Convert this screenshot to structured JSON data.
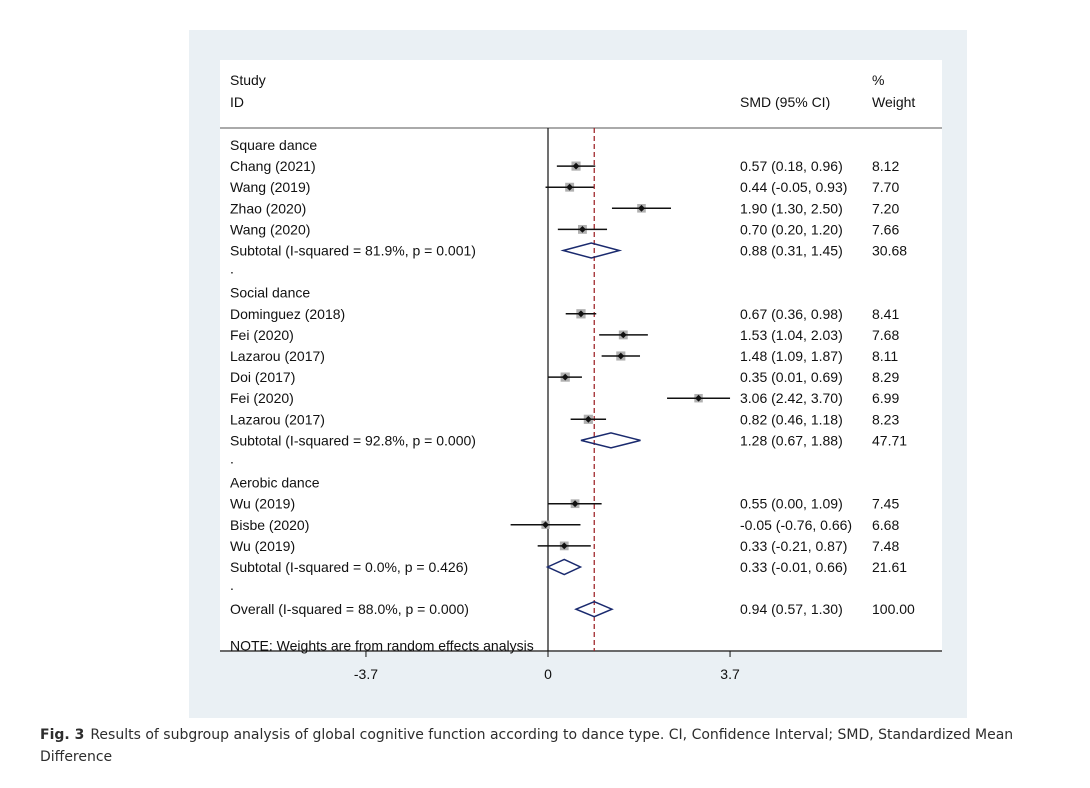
{
  "chart_data": {
    "type": "forest",
    "header": {
      "study_line1": "Study",
      "study_line2": "ID",
      "estimate_label": "SMD (95% CI)",
      "weight_line1": "%",
      "weight_line2": "Weight"
    },
    "x_ticks": [
      {
        "value": -3.7,
        "label": "-3.7"
      },
      {
        "value": 0,
        "label": "0"
      },
      {
        "value": 3.7,
        "label": "3.7"
      }
    ],
    "null_line": 0,
    "overall_estimate_line": 0.94,
    "groups": [
      {
        "name": "Square dance",
        "studies": [
          {
            "label": "Chang (2021)",
            "est": 0.57,
            "lo": 0.18,
            "hi": 0.96,
            "ci_text": "0.57 (0.18, 0.96)",
            "weight": "8.12"
          },
          {
            "label": "Wang  (2019)",
            "est": 0.44,
            "lo": -0.05,
            "hi": 0.93,
            "ci_text": "0.44 (-0.05, 0.93)",
            "weight": "7.70"
          },
          {
            "label": "Zhao (2020)",
            "est": 1.9,
            "lo": 1.3,
            "hi": 2.5,
            "ci_text": "1.90 (1.30, 2.50)",
            "weight": "7.20"
          },
          {
            "label": "Wang (2020)",
            "est": 0.7,
            "lo": 0.2,
            "hi": 1.2,
            "ci_text": "0.70 (0.20, 1.20)",
            "weight": "7.66"
          }
        ],
        "subtotal": {
          "label": "Subtotal  (I-squared = 81.9%, p = 0.001)",
          "est": 0.88,
          "lo": 0.31,
          "hi": 1.45,
          "ci_text": "0.88 (0.31, 1.45)",
          "weight": "30.68"
        }
      },
      {
        "name": "Social dance",
        "studies": [
          {
            "label": "Dominguez  (2018)",
            "est": 0.67,
            "lo": 0.36,
            "hi": 0.98,
            "ci_text": "0.67 (0.36, 0.98)",
            "weight": "8.41"
          },
          {
            "label": "Fei (2020)",
            "est": 1.53,
            "lo": 1.04,
            "hi": 2.03,
            "ci_text": "1.53 (1.04, 2.03)",
            "weight": "7.68"
          },
          {
            "label": "Lazarou  (2017)",
            "est": 1.48,
            "lo": 1.09,
            "hi": 1.87,
            "ci_text": "1.48 (1.09, 1.87)",
            "weight": "8.11"
          },
          {
            "label": "Doi (2017)",
            "est": 0.35,
            "lo": 0.01,
            "hi": 0.69,
            "ci_text": "0.35 (0.01, 0.69)",
            "weight": "8.29"
          },
          {
            "label": "Fei (2020)",
            "est": 3.06,
            "lo": 2.42,
            "hi": 3.7,
            "ci_text": "3.06 (2.42, 3.70)",
            "weight": "6.99"
          },
          {
            "label": "Lazarou  (2017)",
            "est": 0.82,
            "lo": 0.46,
            "hi": 1.18,
            "ci_text": "0.82 (0.46, 1.18)",
            "weight": "8.23"
          }
        ],
        "subtotal": {
          "label": "Subtotal  (I-squared = 92.8%, p = 0.000)",
          "est": 1.28,
          "lo": 0.67,
          "hi": 1.88,
          "ci_text": "1.28 (0.67, 1.88)",
          "weight": "47.71"
        }
      },
      {
        "name": "Aerobic dance",
        "studies": [
          {
            "label": "Wu (2019)",
            "est": 0.55,
            "lo": 0.0,
            "hi": 1.09,
            "ci_text": "0.55 (0.00, 1.09)",
            "weight": "7.45"
          },
          {
            "label": "Bisbe (2020)",
            "est": -0.05,
            "lo": -0.76,
            "hi": 0.66,
            "ci_text": "-0.05 (-0.76, 0.66)",
            "weight": "6.68"
          },
          {
            "label": "Wu (2019)",
            "est": 0.33,
            "lo": -0.21,
            "hi": 0.87,
            "ci_text": "0.33 (-0.21, 0.87)",
            "weight": "7.48"
          }
        ],
        "subtotal": {
          "label": "Subtotal  (I-squared = 0.0%, p = 0.426)",
          "est": 0.33,
          "lo": -0.01,
          "hi": 0.66,
          "ci_text": "0.33 (-0.01, 0.66)",
          "weight": "21.61"
        }
      }
    ],
    "separator": ".",
    "overall": {
      "label": "Overall  (I-squared = 88.0%, p = 0.000)",
      "est": 0.94,
      "lo": 0.57,
      "hi": 1.3,
      "ci_text": "0.94 (0.57, 1.30)",
      "weight": "100.00"
    },
    "note": "NOTE: Weights are from random effects analysis",
    "colors": {
      "background": "#eaf0f4",
      "panel": "#ffffff",
      "marker": "#111111",
      "weight_box": "#b0b0b0",
      "diamond": "#1a2a6e",
      "estimate_line": "#a0282c"
    }
  },
  "caption": {
    "fig_label": "Fig. 3",
    "text": "Results of subgroup analysis of global cognitive function according to dance type. CI, Confidence Interval; SMD, Standardized Mean Difference"
  }
}
